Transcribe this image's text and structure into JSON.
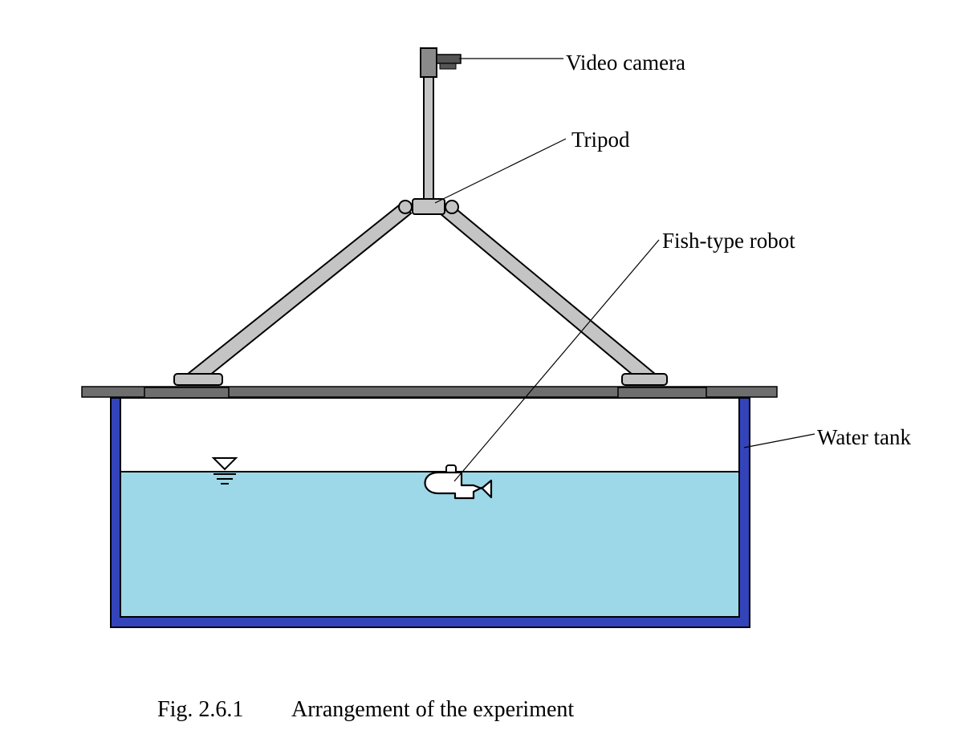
{
  "figure": {
    "labels": {
      "video_camera": "Video camera",
      "tripod": "Tripod",
      "fish_robot": "Fish-type robot",
      "water_tank": "Water tank"
    },
    "caption": {
      "number": "Fig. 2.6.1",
      "text": "Arrangement of the experiment"
    }
  },
  "colors": {
    "tank_wall": "#3344bb",
    "water": "#9dd8e8",
    "tripod_gray": "#c4c4c4",
    "board_gray": "#6e6e6e",
    "line": "#000000"
  }
}
